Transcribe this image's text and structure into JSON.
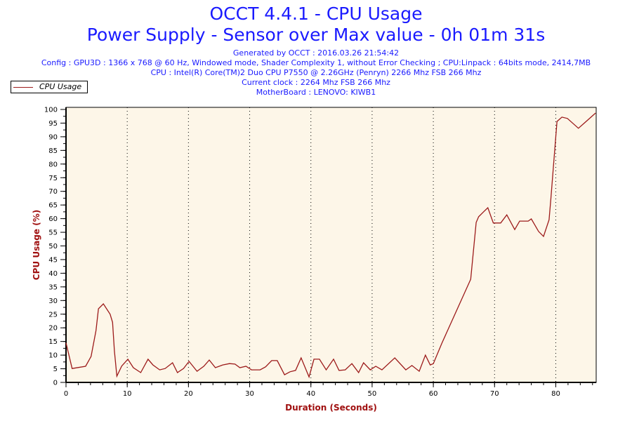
{
  "title": "OCCT 4.4.1 - CPU Usage",
  "subtitle": "Power Supply - Sensor over Max value - 0h 01m 31s",
  "info_lines": [
    "Generated by OCCT : 2016.03.26 21:54:42",
    "Config : GPU3D : 1366 x 768 @ 60 Hz, Windowed mode, Shader Complexity 1, without Error Checking ; CPU:Linpack : 64bits mode, 2414,7MB",
    "CPU : Intel(R) Core(TM)2 Duo CPU P7550 @ 2.26GHz (Penryn) 2266 Mhz FSB 266 Mhz",
    "Current clock : 2264 Mhz FSB 266 Mhz",
    "MotherBoard : LENOVO: KIWB1"
  ],
  "colors": {
    "line": "#9c1a1a",
    "plot_bg": "#fdf6e8",
    "title": "#1a1aff",
    "axis_label": "#a01010"
  },
  "chart_data": {
    "type": "line",
    "title": "OCCT 4.4.1 - CPU Usage",
    "xlabel": "Duration (Seconds)",
    "ylabel": "CPU Usage (%)",
    "xlim": [
      0,
      86.6
    ],
    "ylim": [
      0,
      100
    ],
    "xticks": [
      0,
      10,
      20,
      30,
      40,
      50,
      60,
      70,
      80
    ],
    "yticks": [
      0,
      5,
      10,
      15,
      20,
      25,
      30,
      35,
      40,
      45,
      50,
      55,
      60,
      65,
      70,
      75,
      80,
      85,
      90,
      95,
      100
    ],
    "grid": "vertical dotted every 10",
    "legend": {
      "position": "top-left",
      "entries": [
        "CPU Usage"
      ]
    },
    "series": [
      {
        "name": "CPU Usage",
        "points": [
          [
            0,
            14.5
          ],
          [
            1,
            5.1
          ],
          [
            3.2,
            5.9
          ],
          [
            4.1,
            9.5
          ],
          [
            4.9,
            19
          ],
          [
            5.3,
            27
          ],
          [
            6.1,
            28.8
          ],
          [
            7.2,
            25
          ],
          [
            7.6,
            22
          ],
          [
            7.9,
            11.6
          ],
          [
            8.3,
            2.3
          ],
          [
            9.1,
            6
          ],
          [
            10.1,
            8.5
          ],
          [
            11,
            5.4
          ],
          [
            12.2,
            3.6
          ],
          [
            13.4,
            8.5
          ],
          [
            14.2,
            6.4
          ],
          [
            15.3,
            4.6
          ],
          [
            16.2,
            5.1
          ],
          [
            17.4,
            7.2
          ],
          [
            18.2,
            3.6
          ],
          [
            19.2,
            5.1
          ],
          [
            20.1,
            7.7
          ],
          [
            21.4,
            4.1
          ],
          [
            22.5,
            5.9
          ],
          [
            23.4,
            8.2
          ],
          [
            24.4,
            5.4
          ],
          [
            25.6,
            6.4
          ],
          [
            26.7,
            6.9
          ],
          [
            27.6,
            6.7
          ],
          [
            28.4,
            5.4
          ],
          [
            29.4,
            5.9
          ],
          [
            30.3,
            4.6
          ],
          [
            31.7,
            4.6
          ],
          [
            32.6,
            5.7
          ],
          [
            33.6,
            8
          ],
          [
            34.5,
            8
          ],
          [
            35.7,
            2.8
          ],
          [
            36.6,
            3.9
          ],
          [
            37.5,
            4.4
          ],
          [
            38.4,
            9
          ],
          [
            39.7,
            2
          ],
          [
            40.5,
            8.5
          ],
          [
            41.4,
            8.5
          ],
          [
            42.5,
            4.6
          ],
          [
            43.7,
            8.5
          ],
          [
            44.6,
            4.4
          ],
          [
            45.6,
            4.6
          ],
          [
            46.7,
            6.9
          ],
          [
            47.8,
            3.6
          ],
          [
            48.6,
            7.2
          ],
          [
            49.7,
            4.6
          ],
          [
            50.6,
            5.9
          ],
          [
            51.6,
            4.6
          ],
          [
            53.7,
            9
          ],
          [
            55.5,
            4.6
          ],
          [
            56.5,
            6.2
          ],
          [
            57.7,
            4.1
          ],
          [
            58.7,
            10
          ],
          [
            59.5,
            6.4
          ],
          [
            60,
            6.9
          ],
          [
            61.4,
            14.4
          ],
          [
            66.1,
            37.8
          ],
          [
            67,
            58.6
          ],
          [
            67.4,
            60.7
          ],
          [
            68.2,
            62.5
          ],
          [
            68.9,
            64
          ],
          [
            69.8,
            58.4
          ],
          [
            71,
            58.4
          ],
          [
            72,
            61.4
          ],
          [
            73.3,
            56
          ],
          [
            74.1,
            59.1
          ],
          [
            75.5,
            59.1
          ],
          [
            76,
            59.9
          ],
          [
            77.2,
            55.3
          ],
          [
            78,
            53.5
          ],
          [
            78.9,
            59.6
          ],
          [
            79.2,
            67.4
          ],
          [
            79.8,
            84.3
          ],
          [
            80.2,
            95.6
          ],
          [
            81,
            97.2
          ],
          [
            81.9,
            96.7
          ],
          [
            83.7,
            93.1
          ],
          [
            84.7,
            95.1
          ],
          [
            86.5,
            98.7
          ]
        ]
      }
    ]
  }
}
